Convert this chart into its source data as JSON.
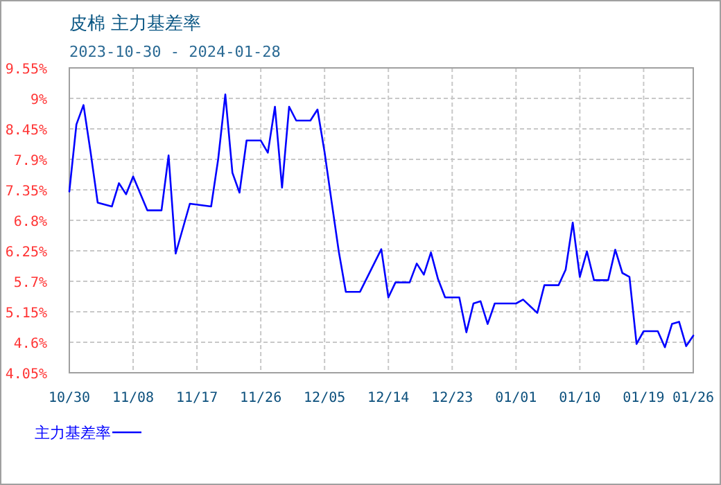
{
  "chart_data": {
    "type": "line",
    "title": "皮棉  主力基差率",
    "subtitle": "2023-10-30 - 2024-01-28",
    "x": [
      "2023-10-30",
      "2023-10-31",
      "2023-11-01",
      "2023-11-02",
      "2023-11-03",
      "2023-11-05",
      "2023-11-06",
      "2023-11-07",
      "2023-11-08",
      "2023-11-10",
      "2023-11-12",
      "2023-11-13",
      "2023-11-14",
      "2023-11-16",
      "2023-11-19",
      "2023-11-20",
      "2023-11-21",
      "2023-11-22",
      "2023-11-23",
      "2023-11-24",
      "2023-11-26",
      "2023-11-27",
      "2023-11-28",
      "2023-11-29",
      "2023-11-30",
      "2023-12-01",
      "2023-12-03",
      "2023-12-04",
      "2023-12-05",
      "2023-12-06",
      "2023-12-07",
      "2023-12-08",
      "2023-12-10",
      "2023-12-13",
      "2023-12-14",
      "2023-12-15",
      "2023-12-17",
      "2023-12-18",
      "2023-12-19",
      "2023-12-20",
      "2023-12-21",
      "2023-12-22",
      "2023-12-24",
      "2023-12-25",
      "2023-12-26",
      "2023-12-27",
      "2023-12-28",
      "2023-12-29",
      "2024-01-01",
      "2024-01-02",
      "2024-01-04",
      "2024-01-05",
      "2024-01-07",
      "2024-01-08",
      "2024-01-09",
      "2024-01-10",
      "2024-01-11",
      "2024-01-12",
      "2024-01-14",
      "2024-01-15",
      "2024-01-16",
      "2024-01-17",
      "2024-01-18",
      "2024-01-19",
      "2024-01-21",
      "2024-01-22",
      "2024-01-23",
      "2024-01-24",
      "2024-01-25",
      "2024-01-26"
    ],
    "series": [
      {
        "name": "主力基差率",
        "color": "#0000ff",
        "values": [
          7.32,
          8.53,
          8.88,
          8.03,
          7.12,
          7.05,
          7.47,
          7.27,
          7.59,
          6.98,
          6.98,
          7.97,
          6.2,
          7.1,
          7.05,
          7.91,
          9.07,
          7.66,
          7.3,
          8.24,
          8.24,
          8.02,
          8.85,
          7.39,
          8.85,
          8.6,
          8.6,
          8.8,
          8.03,
          7.13,
          6.24,
          5.51,
          5.51,
          6.28,
          5.41,
          5.68,
          5.68,
          6.02,
          5.82,
          6.22,
          5.74,
          5.41,
          5.41,
          4.78,
          5.3,
          5.34,
          4.93,
          5.3,
          5.3,
          5.37,
          5.13,
          5.63,
          5.63,
          5.91,
          6.76,
          5.78,
          6.24,
          5.72,
          5.72,
          6.27,
          5.85,
          5.78,
          4.57,
          4.8,
          4.8,
          4.51,
          4.93,
          4.97,
          4.53,
          4.72
        ]
      }
    ],
    "xlim": [
      "2023-10-30",
      "2024-01-26"
    ],
    "xticks": [
      {
        "value": "2023-10-30",
        "label": "10/30"
      },
      {
        "value": "2023-11-08",
        "label": "11/08"
      },
      {
        "value": "2023-11-17",
        "label": "11/17"
      },
      {
        "value": "2023-11-26",
        "label": "11/26"
      },
      {
        "value": "2023-12-05",
        "label": "12/05"
      },
      {
        "value": "2023-12-14",
        "label": "12/14"
      },
      {
        "value": "2023-12-23",
        "label": "12/23"
      },
      {
        "value": "2024-01-01",
        "label": "01/01"
      },
      {
        "value": "2024-01-10",
        "label": "01/10"
      },
      {
        "value": "2024-01-19",
        "label": "01/19"
      },
      {
        "value": "2024-01-26",
        "label": "01/26"
      }
    ],
    "ylim": [
      4.05,
      9.55
    ],
    "yticks": [
      {
        "value": 4.05,
        "label": "4.05%"
      },
      {
        "value": 4.6,
        "label": "4.6%"
      },
      {
        "value": 5.15,
        "label": "5.15%"
      },
      {
        "value": 5.7,
        "label": "5.7%"
      },
      {
        "value": 6.25,
        "label": "6.25%"
      },
      {
        "value": 6.8,
        "label": "6.8%"
      },
      {
        "value": 7.35,
        "label": "7.35%"
      },
      {
        "value": 7.9,
        "label": "7.9%"
      },
      {
        "value": 8.45,
        "label": "8.45%"
      },
      {
        "value": 9,
        "label": "9%"
      },
      {
        "value": 9.55,
        "label": "9.55%"
      }
    ],
    "grid": true,
    "legend": "bottom"
  }
}
